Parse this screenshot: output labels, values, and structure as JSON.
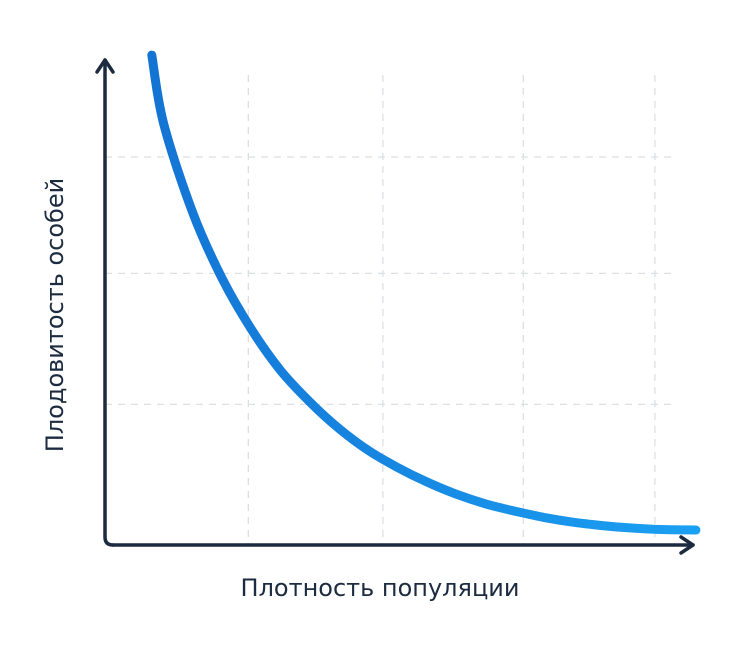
{
  "colors": {
    "axis": "#1c2b3f",
    "grid": "#dcdfe4",
    "curve_start": "#1474d4",
    "curve_end": "#1aa0f2",
    "text": "#1c2b3f",
    "background": "#ffffff"
  },
  "chart_data": {
    "type": "line",
    "title": "",
    "xlabel": "Плотность популяции",
    "ylabel": "Плодовитость особей",
    "x_ticks_labeled": false,
    "y_ticks_labeled": false,
    "grid": true,
    "grid_style": "dashed",
    "xlim": [
      0,
      10
    ],
    "ylim": [
      0,
      10
    ],
    "x_grid": [
      2.45,
      4.75,
      7.15,
      9.4
    ],
    "y_grid": [
      2.9,
      5.6,
      8.0
    ],
    "series": [
      {
        "values_x": [
          0.8,
          1.0,
          1.5,
          2.0,
          2.5,
          3.0,
          3.5,
          4.0,
          4.5,
          5.0,
          5.5,
          6.0,
          6.5,
          7.0,
          7.5,
          8.0,
          8.5,
          9.0,
          9.5,
          10.1
        ],
        "values_y": [
          10.1,
          8.7,
          6.85,
          5.5,
          4.45,
          3.6,
          2.95,
          2.4,
          1.95,
          1.6,
          1.3,
          1.05,
          0.85,
          0.7,
          0.57,
          0.47,
          0.4,
          0.35,
          0.32,
          0.31
        ]
      }
    ]
  }
}
